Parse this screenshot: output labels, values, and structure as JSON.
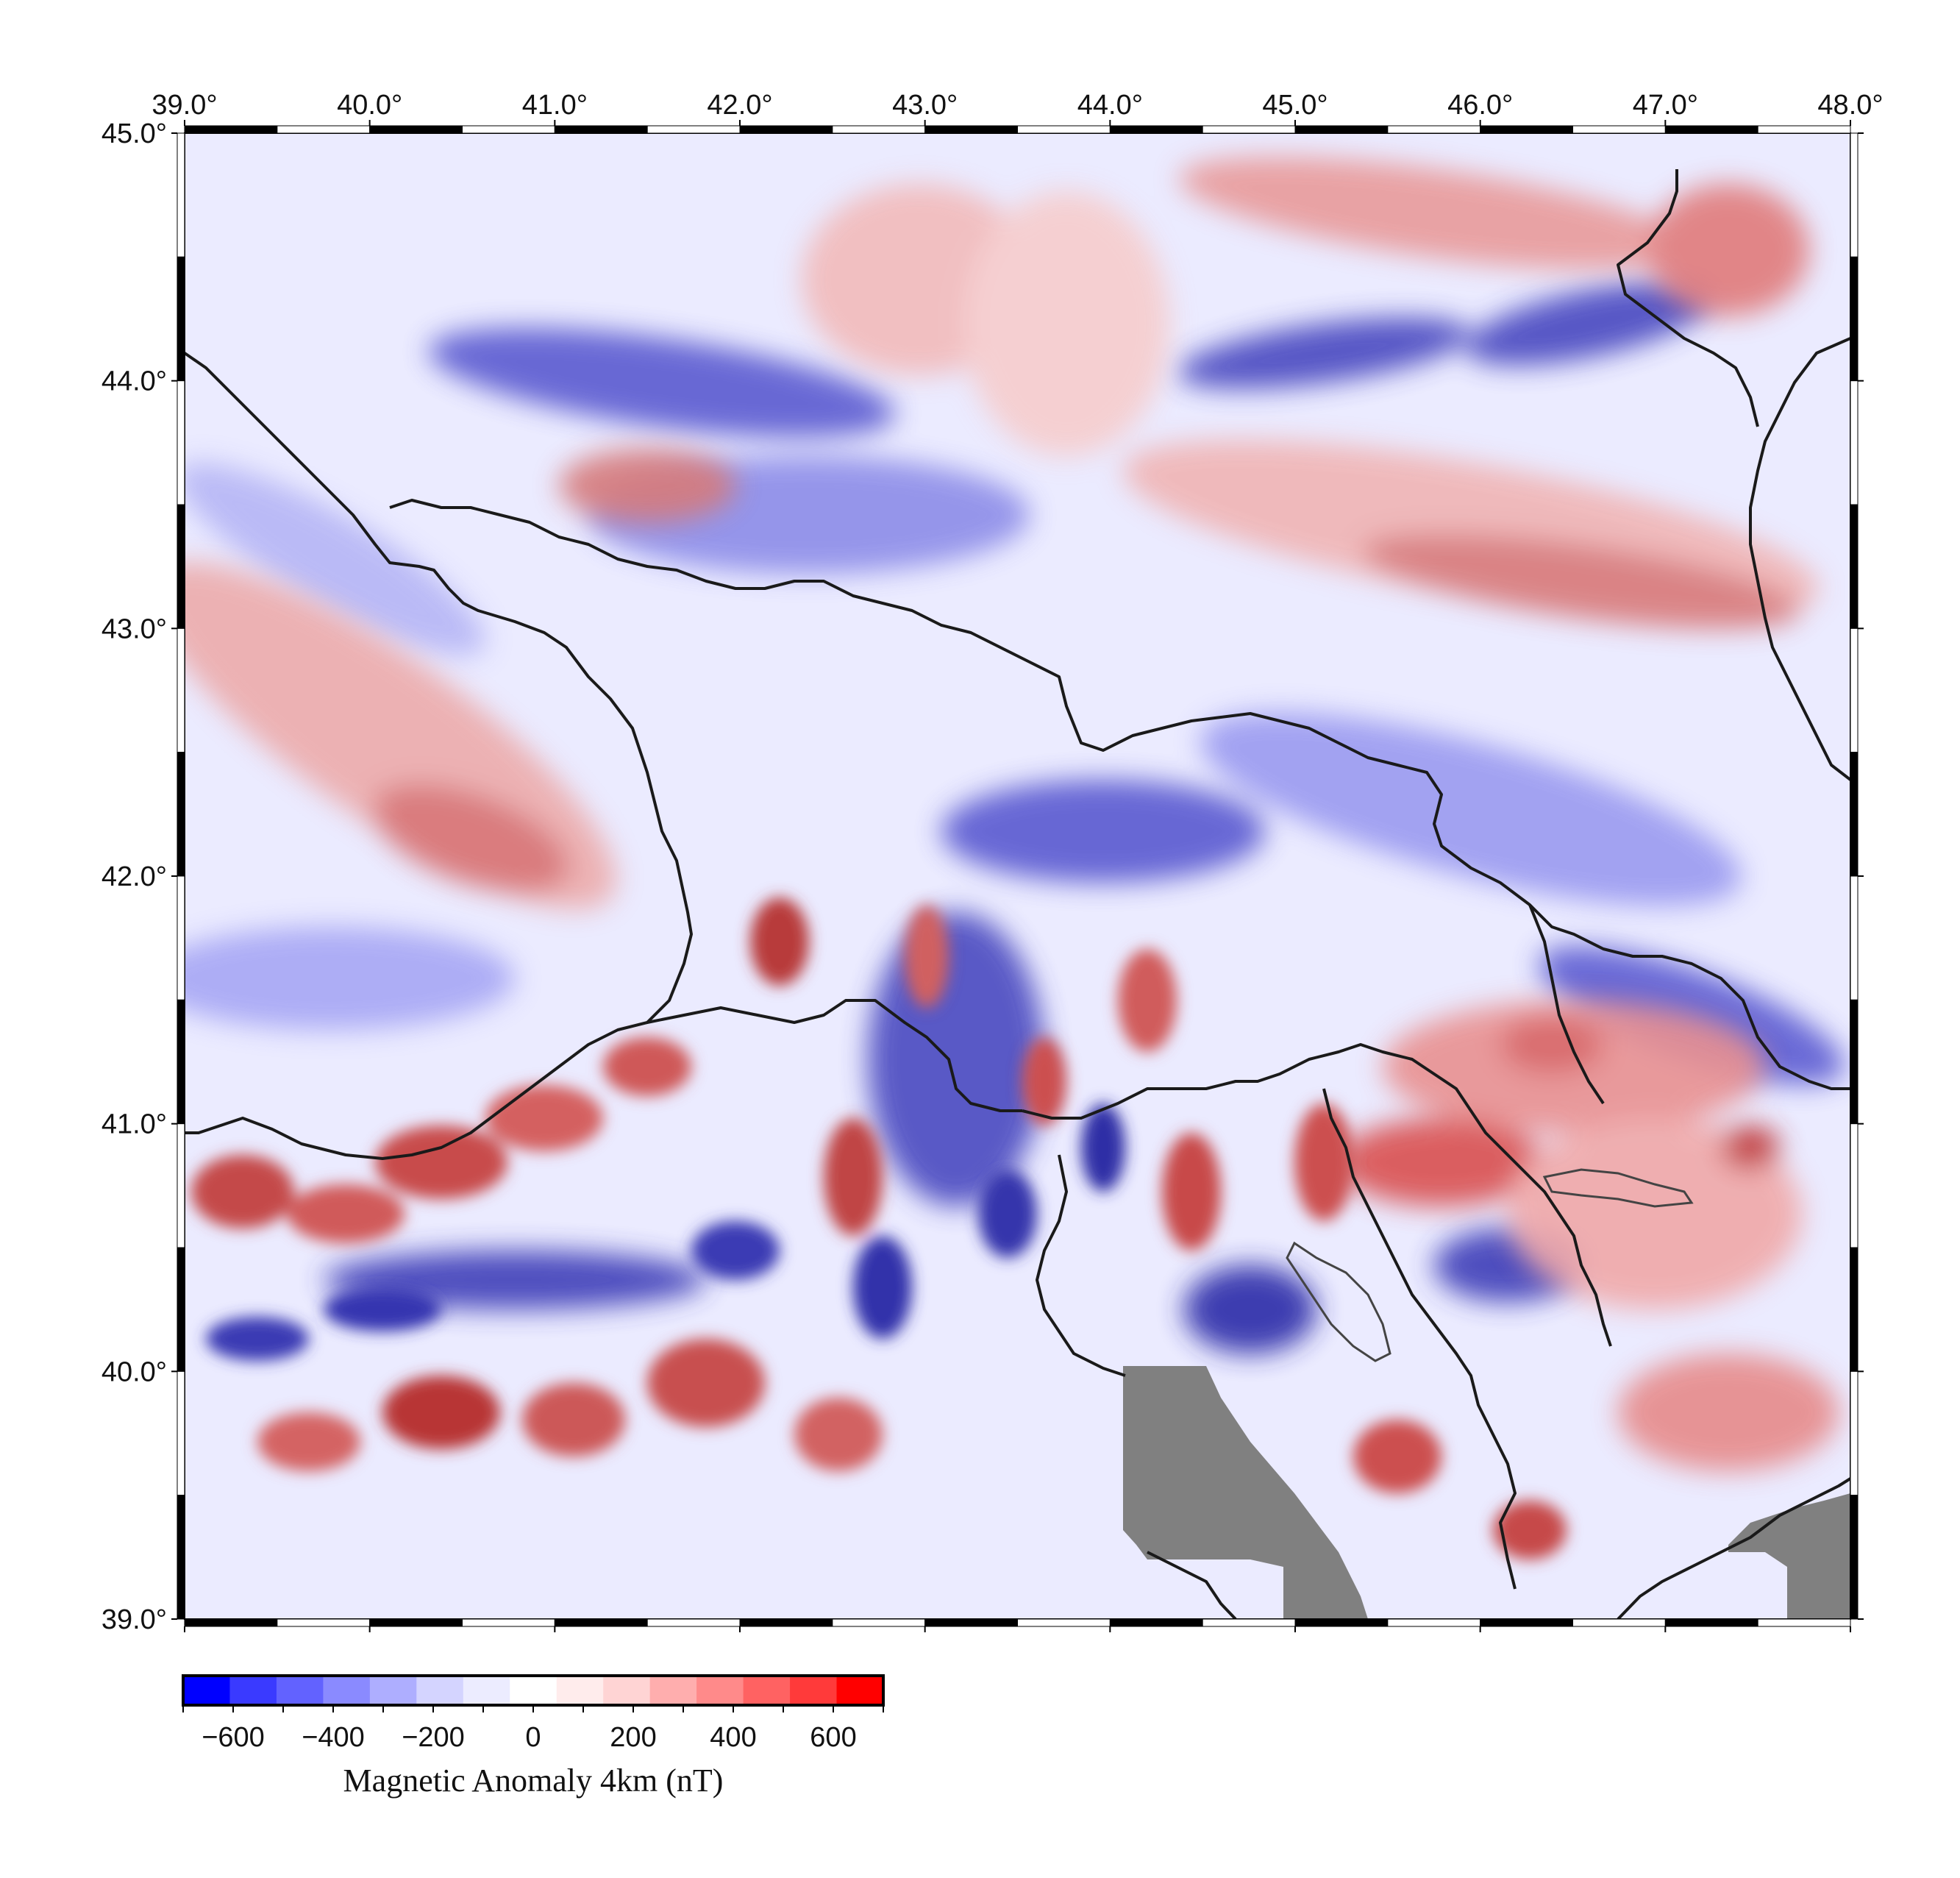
{
  "map": {
    "lon_ticks": [
      "39.0°",
      "40.0°",
      "41.0°",
      "42.0°",
      "43.0°",
      "44.0°",
      "45.0°",
      "46.0°",
      "47.0°",
      "48.0°"
    ],
    "lat_ticks": [
      "45.0°",
      "44.0°",
      "43.0°",
      "42.0°",
      "41.0°",
      "40.0°",
      "39.0°"
    ],
    "lon_range": [
      39.0,
      48.0
    ],
    "lat_range": [
      39.0,
      45.0
    ],
    "no_data_color": "#808080",
    "border_color": "#222222",
    "lake_color": "#444444"
  },
  "colorbar": {
    "title": "Magnetic Anomaly 4km (nT)",
    "tick_labels": [
      "−600",
      "−400",
      "−200",
      "0",
      "200",
      "400",
      "600"
    ],
    "range": [
      -700,
      700
    ],
    "step": 100,
    "colors": [
      "#0000ff",
      "#3a3aff",
      "#6262ff",
      "#8a8aff",
      "#aeaeff",
      "#d4d4ff",
      "#ececff",
      "#ffffff",
      "#ffecec",
      "#ffd4d4",
      "#ffaeae",
      "#ff8a8a",
      "#ff6262",
      "#ff3a3a",
      "#ff0000"
    ]
  }
}
